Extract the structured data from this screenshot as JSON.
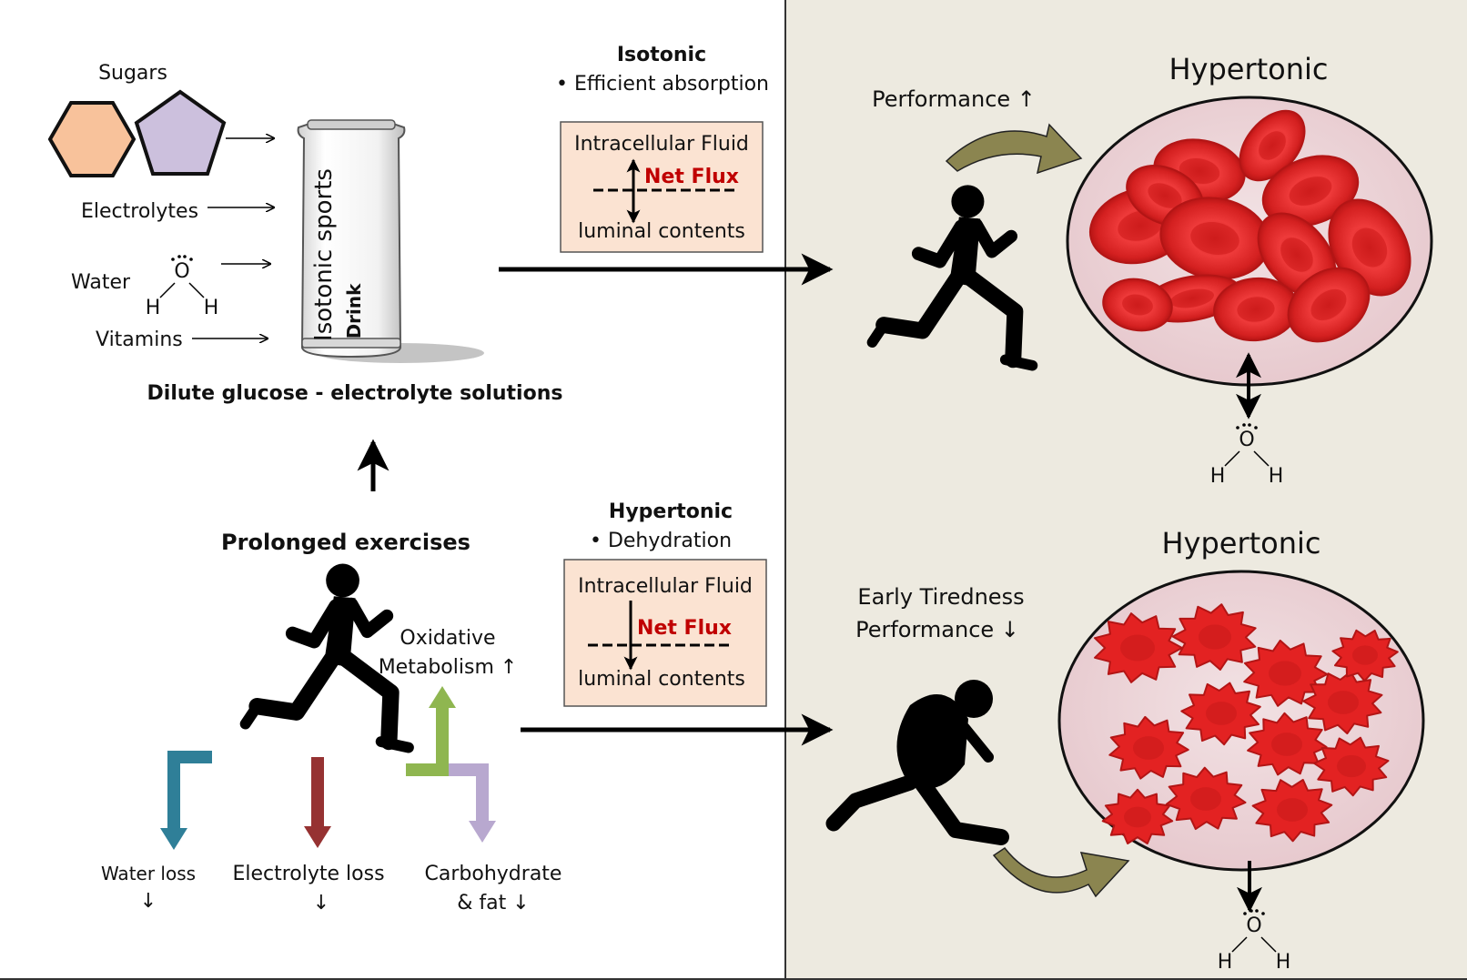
{
  "colors": {
    "right_panel_bg": "#edeae0",
    "hexagon": "#f8c29b",
    "pentagon": "#ccc0dd",
    "box_fill": "#fbe3d2",
    "net_flux": "#c00000",
    "rbc": "#e32222",
    "circle_fill": "#ecd4d8",
    "arrow_teal": "#2f7f98",
    "arrow_maroon": "#963232",
    "arrow_green": "#8fb650",
    "arrow_lavender": "#b8a8cf",
    "curved_arrow": "#8b8550"
  },
  "icons": [
    "hexagon-icon",
    "pentagon-icon",
    "can-icon",
    "runner-icon",
    "crouching-runner-icon",
    "water-molecule-icon",
    "red-blood-cell-icon",
    "curved-arrow-icon"
  ],
  "inputs": {
    "sugars": "Sugars",
    "electrolytes": "Electrolytes",
    "water": "Water",
    "vitamins": "Vitamins",
    "H": "H",
    "O": "O"
  },
  "can": {
    "line1": "Isotonic sports",
    "line2": "Drink"
  },
  "solution_label": "Dilute glucose - electrolyte solutions",
  "exercise": {
    "title": "Prolonged exercises",
    "oxidative_line1": "Oxidative",
    "oxidative_line2": "Metabolism ↑",
    "water_loss": "Water loss",
    "electrolyte_loss": "Electrolyte loss",
    "carb_line1": "Carbohydrate",
    "carb_line2": "& fat ↓",
    "down": "↓"
  },
  "isotonic": {
    "title": "Isotonic",
    "bullet": "• Efficient absorption",
    "box_top": "Intracellular Fluid",
    "net_flux": "Net Flux",
    "box_bottom": "luminal contents"
  },
  "hypertonic_left": {
    "title": "Hypertonic",
    "bullet": "• Dehydration",
    "box_top": "Intracellular Fluid",
    "net_flux": "Net Flux",
    "box_bottom": "luminal contents"
  },
  "right_top": {
    "title": "Hypertonic",
    "performance": "Performance ↑"
  },
  "right_bottom": {
    "title": "Hypertonic",
    "tired_line1": "Early Tiredness",
    "tired_line2": "Performance ↓"
  }
}
